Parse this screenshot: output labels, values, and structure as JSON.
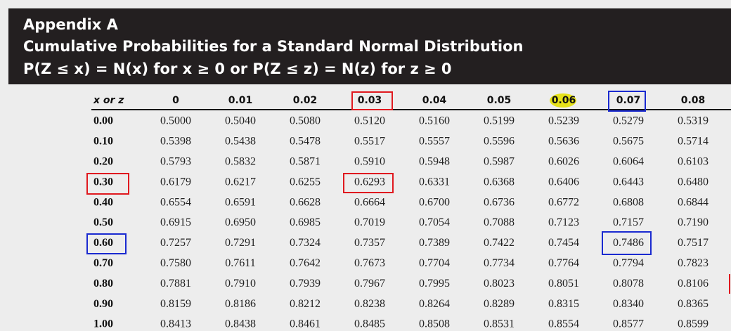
{
  "header": {
    "title": "Appendix A",
    "subtitle": "Cumulative Probabilities for a Standard Normal Distribution",
    "formula": "P(Z ≤ x) = N(x) for x ≥ 0 or P(Z ≤ z) = N(z) for z ≥ 0"
  },
  "table": {
    "header": [
      "x or z",
      "0",
      "0.01",
      "0.02",
      "0.03",
      "0.04",
      "0.05",
      "0.06",
      "0.07",
      "0.08"
    ],
    "rows": [
      [
        "0.00",
        "0.5000",
        "0.5040",
        "0.5080",
        "0.5120",
        "0.5160",
        "0.5199",
        "0.5239",
        "0.5279",
        "0.5319"
      ],
      [
        "0.10",
        "0.5398",
        "0.5438",
        "0.5478",
        "0.5517",
        "0.5557",
        "0.5596",
        "0.5636",
        "0.5675",
        "0.5714"
      ],
      [
        "0.20",
        "0.5793",
        "0.5832",
        "0.5871",
        "0.5910",
        "0.5948",
        "0.5987",
        "0.6026",
        "0.6064",
        "0.6103"
      ],
      [
        "0.30",
        "0.6179",
        "0.6217",
        "0.6255",
        "0.6293",
        "0.6331",
        "0.6368",
        "0.6406",
        "0.6443",
        "0.6480"
      ],
      [
        "0.40",
        "0.6554",
        "0.6591",
        "0.6628",
        "0.6664",
        "0.6700",
        "0.6736",
        "0.6772",
        "0.6808",
        "0.6844"
      ],
      [
        "0.50",
        "0.6915",
        "0.6950",
        "0.6985",
        "0.7019",
        "0.7054",
        "0.7088",
        "0.7123",
        "0.7157",
        "0.7190"
      ],
      [
        "0.60",
        "0.7257",
        "0.7291",
        "0.7324",
        "0.7357",
        "0.7389",
        "0.7422",
        "0.7454",
        "0.7486",
        "0.7517"
      ],
      [
        "0.70",
        "0.7580",
        "0.7611",
        "0.7642",
        "0.7673",
        "0.7704",
        "0.7734",
        "0.7764",
        "0.7794",
        "0.7823"
      ],
      [
        "0.80",
        "0.7881",
        "0.7910",
        "0.7939",
        "0.7967",
        "0.7995",
        "0.8023",
        "0.8051",
        "0.8078",
        "0.8106"
      ],
      [
        "0.90",
        "0.8159",
        "0.8186",
        "0.8212",
        "0.8238",
        "0.8264",
        "0.8289",
        "0.8315",
        "0.8340",
        "0.8365"
      ],
      [
        "1.00",
        "0.8413",
        "0.8438",
        "0.8461",
        "0.8485",
        "0.8508",
        "0.8531",
        "0.8554",
        "0.8577",
        "0.8599"
      ]
    ]
  }
}
